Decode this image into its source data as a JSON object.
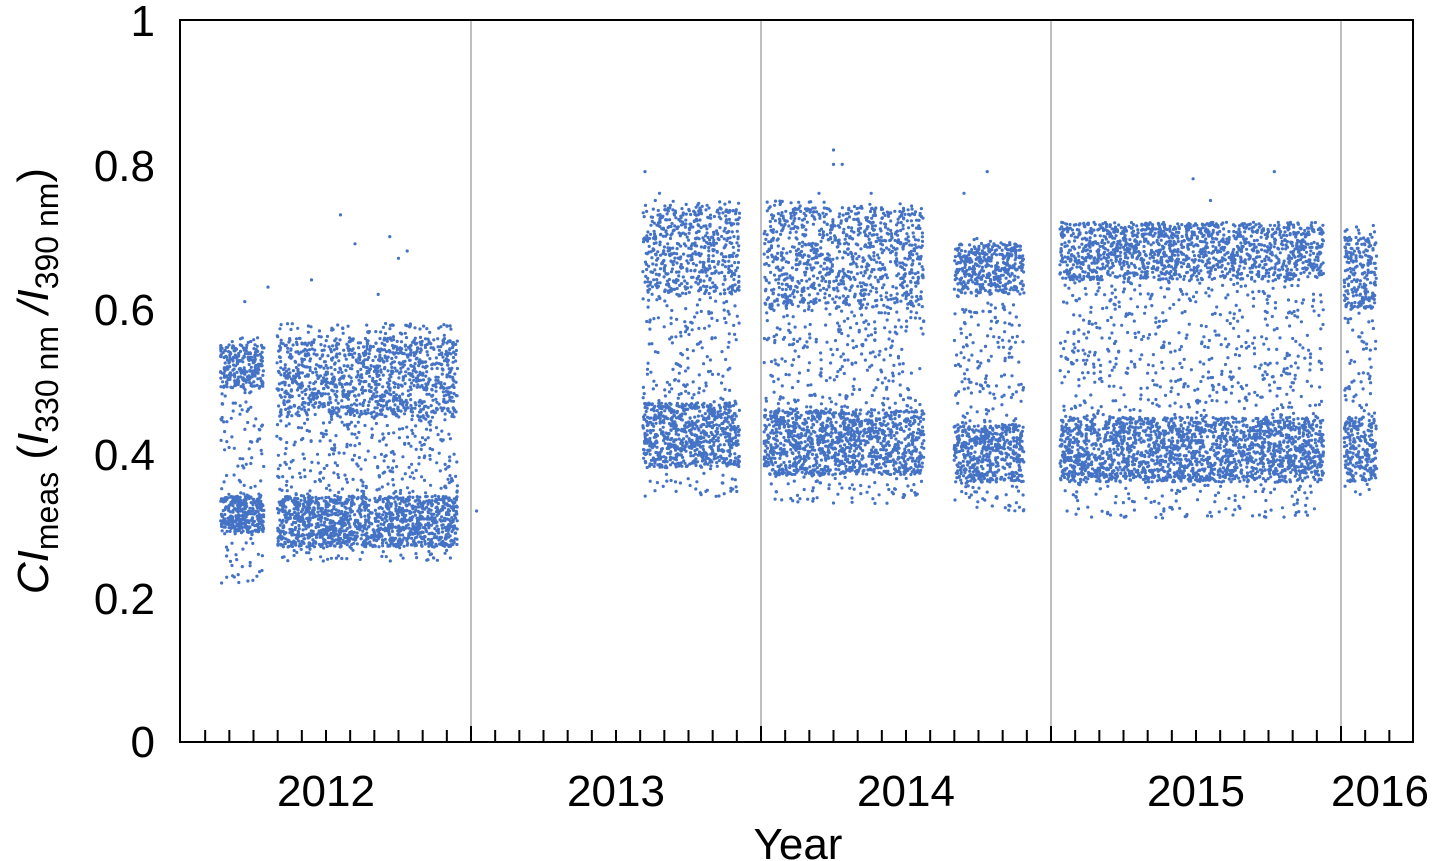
{
  "chart_data": {
    "type": "scatter",
    "title": "",
    "xlabel": "Year",
    "ylabel": {
      "main": "CI",
      "main_sub": "meas",
      "open": " (",
      "i1": "I",
      "i1_sub": "330 nm",
      "sep": " /",
      "i2": "I",
      "i2_sub": "390 nm",
      "close": ")"
    },
    "xlim": [
      "2012-01-01",
      "2016-04-01"
    ],
    "ylim": [
      0,
      1
    ],
    "y_ticks": [
      "0",
      "0.2",
      "0.4",
      "0.6",
      "0.8",
      "1"
    ],
    "x_tick_labels": [
      "2012",
      "2013",
      "2014",
      "2015",
      "2016"
    ],
    "x_minor_ticks": "monthly",
    "year_gridlines": true,
    "marker_color": "#4472C4",
    "gridline_color": "#BFBFBF",
    "note": "",
    "segments": [
      {
        "start": "2012-02-20",
        "end": "2012-04-15",
        "upper": [
          0.49,
          0.55
        ],
        "lower": [
          0.29,
          0.34
        ],
        "scatter": [
          0.22,
          0.56
        ],
        "outliers": [
          [
            2012.22,
            0.61
          ],
          [
            2012.3,
            0.63
          ]
        ]
      },
      {
        "start": "2012-05-01",
        "end": "2012-12-15",
        "upper": [
          0.45,
          0.56
        ],
        "lower": [
          0.27,
          0.34
        ],
        "scatter": [
          0.25,
          0.58
        ],
        "outliers": [
          [
            2012.45,
            0.64
          ],
          [
            2012.55,
            0.73
          ],
          [
            2012.6,
            0.69
          ],
          [
            2012.72,
            0.7
          ],
          [
            2012.75,
            0.67
          ],
          [
            2012.78,
            0.68
          ],
          [
            2012.68,
            0.62
          ]
        ]
      },
      {
        "start": "2013-01-08",
        "end": "2013-01-08",
        "upper": [
          0.32,
          0.32
        ],
        "lower": [
          0.32,
          0.32
        ],
        "scatter": [
          0.32,
          0.32
        ],
        "outliers": []
      },
      {
        "start": "2013-08-05",
        "end": "2013-12-05",
        "upper": [
          0.62,
          0.74
        ],
        "lower": [
          0.38,
          0.47
        ],
        "scatter": [
          0.34,
          0.75
        ],
        "outliers": [
          [
            2013.6,
            0.79
          ],
          [
            2013.65,
            0.76
          ]
        ]
      },
      {
        "start": "2014-01-05",
        "end": "2014-07-25",
        "upper": [
          0.6,
          0.74
        ],
        "lower": [
          0.37,
          0.46
        ],
        "scatter": [
          0.33,
          0.75
        ],
        "outliers": [
          [
            2014.25,
            0.82
          ],
          [
            2014.25,
            0.8
          ],
          [
            2014.28,
            0.8
          ],
          [
            2014.2,
            0.76
          ],
          [
            2014.38,
            0.76
          ]
        ]
      },
      {
        "start": "2014-09-01",
        "end": "2014-11-28",
        "upper": [
          0.62,
          0.69
        ],
        "lower": [
          0.36,
          0.44
        ],
        "scatter": [
          0.32,
          0.7
        ],
        "outliers": [
          [
            2014.78,
            0.79
          ],
          [
            2014.7,
            0.76
          ]
        ]
      },
      {
        "start": "2015-01-12",
        "end": "2015-12-10",
        "upper": [
          0.64,
          0.72
        ],
        "lower": [
          0.36,
          0.45
        ],
        "scatter": [
          0.31,
          0.72
        ],
        "outliers": [
          [
            2015.49,
            0.78
          ],
          [
            2015.55,
            0.75
          ],
          [
            2015.77,
            0.79
          ]
        ]
      },
      {
        "start": "2016-01-05",
        "end": "2016-02-15",
        "upper": [
          0.6,
          0.7
        ],
        "lower": [
          0.36,
          0.45
        ],
        "scatter": [
          0.34,
          0.72
        ],
        "outliers": []
      }
    ]
  }
}
